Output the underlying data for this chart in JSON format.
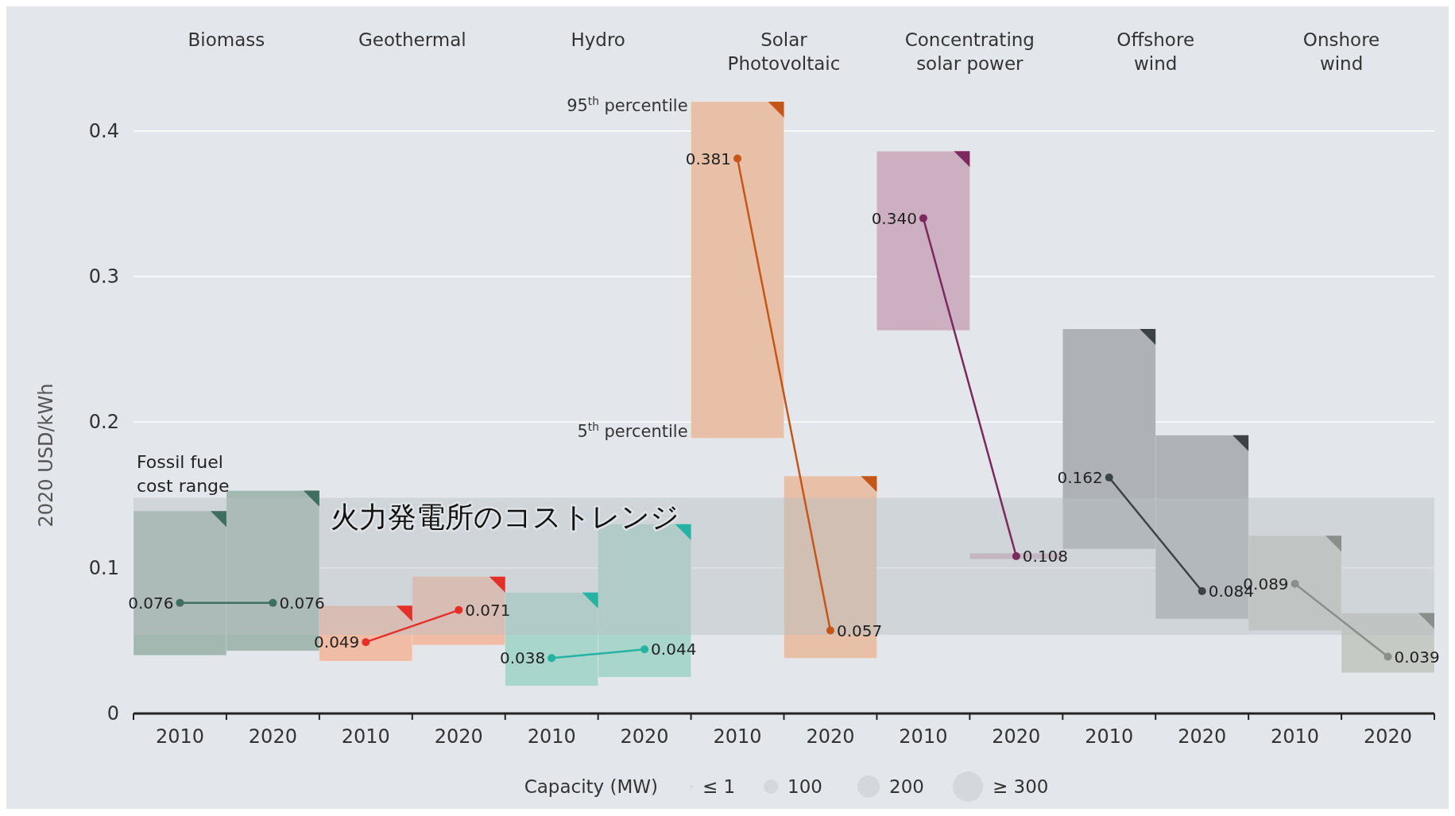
{
  "chart_data": {
    "type": "bar",
    "ylabel": "2020 USD/kWh",
    "categories": [
      "2010",
      "2020",
      "2010",
      "2020",
      "2010",
      "2020",
      "2010",
      "2020",
      "2010",
      "2020",
      "2010",
      "2020",
      "2010",
      "2020"
    ],
    "base": [
      0.04,
      0.043,
      0.036,
      0.047,
      0.019,
      0.025,
      0.189,
      0.038,
      0.263,
      0.106,
      0.113,
      0.065,
      0.057,
      0.028
    ],
    "values": [
      0.099,
      0.11,
      0.038,
      0.047,
      0.064,
      0.105,
      0.231,
      0.125,
      0.123,
      0.004,
      0.151,
      0.126,
      0.065,
      0.041
    ],
    "colors": [
      "#a3b8b0",
      "#a3b8b0",
      "#f0bca6",
      "#f0bca6",
      "#a9d6cc",
      "#a9d6cc",
      "#e8c0a8",
      "#e8c0a8",
      "#cdafc2",
      "#cdafc2",
      "#aeb2b7",
      "#aeb2b7",
      "#c6cac5",
      "#c6cac5"
    ],
    "series": [
      {
        "type": "line",
        "color": "#3f6e60",
        "values": [
          0.076,
          0.076,
          null,
          null,
          null,
          null,
          null,
          null,
          null,
          null,
          null,
          null,
          null,
          null
        ],
        "value_labels": [
          "0.076",
          "0.076",
          null,
          null,
          null,
          null,
          null,
          null,
          null,
          null,
          null,
          null,
          null,
          null
        ]
      },
      {
        "type": "line",
        "color": "#e5302a",
        "values": [
          null,
          null,
          0.049,
          0.071,
          null,
          null,
          null,
          null,
          null,
          null,
          null,
          null,
          null,
          null
        ],
        "value_labels": [
          null,
          null,
          "0.049",
          "0.071",
          null,
          null,
          null,
          null,
          null,
          null,
          null,
          null,
          null,
          null
        ]
      },
      {
        "type": "line",
        "color": "#26b3a3",
        "values": [
          null,
          null,
          null,
          null,
          0.038,
          0.044,
          null,
          null,
          null,
          null,
          null,
          null,
          null,
          null
        ],
        "value_labels": [
          null,
          null,
          null,
          null,
          "0.038",
          "0.044",
          null,
          null,
          null,
          null,
          null,
          null,
          null,
          null
        ]
      },
      {
        "type": "line",
        "color": "#c4561a",
        "values": [
          null,
          null,
          null,
          null,
          null,
          null,
          0.381,
          0.057,
          null,
          null,
          null,
          null,
          null,
          null
        ],
        "value_labels": [
          null,
          null,
          null,
          null,
          null,
          null,
          "0.381",
          "0.057",
          null,
          null,
          null,
          null,
          null,
          null
        ]
      },
      {
        "type": "line",
        "color": "#7c2a5e",
        "values": [
          null,
          null,
          null,
          null,
          null,
          null,
          null,
          null,
          0.34,
          0.108,
          null,
          null,
          null,
          null
        ],
        "value_labels": [
          null,
          null,
          null,
          null,
          null,
          null,
          null,
          null,
          "0.340",
          "0.108",
          null,
          null,
          null,
          null
        ]
      },
      {
        "type": "line",
        "color": "#3c4347",
        "values": [
          null,
          null,
          null,
          null,
          null,
          null,
          null,
          null,
          null,
          null,
          0.162,
          0.084,
          null,
          null
        ],
        "value_labels": [
          null,
          null,
          null,
          null,
          null,
          null,
          null,
          null,
          null,
          null,
          "0.162",
          "0.084",
          null,
          null
        ]
      },
      {
        "type": "line",
        "color": "#8b8f8b",
        "values": [
          null,
          null,
          null,
          null,
          null,
          null,
          null,
          null,
          null,
          null,
          null,
          null,
          0.089,
          0.039
        ],
        "value_labels": [
          null,
          null,
          null,
          null,
          null,
          null,
          null,
          null,
          null,
          null,
          null,
          null,
          "0.089",
          "0.039"
        ]
      }
    ],
    "bands": [
      {
        "axis": "y",
        "from": 0.054,
        "to": 0.148,
        "label": "Fossil fuel\ncost range",
        "color": "#b9bfc4"
      }
    ],
    "annotations": [
      "火力発電所のコストレンジ",
      "95$^{th}$ percentile",
      "5$^{th}$ percentile",
      "Capacity (MW)",
      "≤ 1",
      "100",
      "200",
      "≥ 300",
      "Biomass",
      "Geothermal",
      "Hydro",
      "Solar\nPhotovoltaic",
      "Concentrating\nsolar power",
      "Offshore\nwind",
      "Onshore\nwind"
    ],
    "ylim": [
      0,
      0.42
    ],
    "yticks": [
      0,
      0.1,
      0.2,
      0.3,
      0.4
    ],
    "grid": "y",
    "marker": "circle",
    "line_style": "solid"
  }
}
